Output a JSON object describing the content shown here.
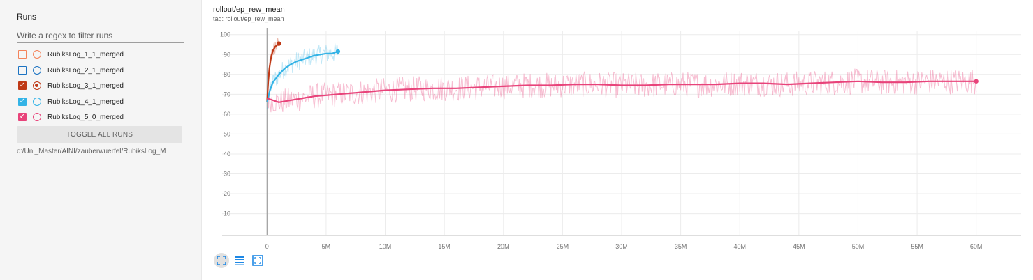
{
  "sidebar": {
    "title": "Runs",
    "filter_placeholder": "Write a regex to filter runs",
    "runs": [
      {
        "label": "RubiksLog_1_1_merged",
        "color": "#f4835a",
        "checked": false,
        "radio_selected": false
      },
      {
        "label": "RubiksLog_2_1_merged",
        "color": "#1c73c2",
        "checked": false,
        "radio_selected": false
      },
      {
        "label": "RubiksLog_3_1_merged",
        "color": "#bf3916",
        "checked": true,
        "radio_selected": true
      },
      {
        "label": "RubiksLog_4_1_merged",
        "color": "#33b3e6",
        "checked": true,
        "radio_selected": false
      },
      {
        "label": "RubiksLog_5_0_merged",
        "color": "#e8437a",
        "checked": true,
        "radio_selected": false
      }
    ],
    "toggle_all_label": "TOGGLE ALL RUNS",
    "log_path": "c:/Uni_Master/AINI/zauberwuerfel/RubiksLog_M"
  },
  "chart": {
    "title": "rollout/ep_rew_mean",
    "tag": "tag: rollout/ep_rew_mean",
    "toolbar": [
      "fit-to-data-icon",
      "toggle-legend-icon",
      "fit-domain-icon"
    ]
  },
  "chart_data": {
    "type": "line",
    "title": "rollout/ep_rew_mean",
    "xlabel": "",
    "ylabel": "",
    "x_ticks": [
      "0",
      "5M",
      "10M",
      "15M",
      "20M",
      "25M",
      "30M",
      "35M",
      "40M",
      "45M",
      "50M",
      "55M",
      "60M"
    ],
    "y_ticks": [
      "10",
      "20",
      "30",
      "40",
      "50",
      "60",
      "70",
      "80",
      "90",
      "100"
    ],
    "xlim": [
      -3800000,
      63800000
    ],
    "ylim": [
      -1,
      102
    ],
    "grid": true,
    "legend": "none",
    "series": [
      {
        "name": "RubiksLog_3_1_merged",
        "color": "#bf3916",
        "x": [
          0,
          100000,
          200000,
          300000,
          400000,
          500000,
          600000,
          700000,
          800000,
          900000,
          1000000
        ],
        "y": [
          66,
          76,
          83,
          87,
          90,
          92,
          93,
          94,
          94.5,
          95,
          95.5
        ]
      },
      {
        "name": "RubiksLog_4_1_merged",
        "color": "#33b3e6",
        "x": [
          0,
          250000,
          500000,
          1000000,
          1500000,
          2000000,
          2500000,
          3000000,
          3500000,
          4000000,
          4500000,
          5000000,
          5500000,
          6000000
        ],
        "y": [
          66,
          72,
          76,
          80,
          83,
          85,
          86.5,
          87.5,
          88.5,
          89.5,
          90,
          90.5,
          90.5,
          91.5
        ]
      },
      {
        "name": "RubiksLog_5_0_merged",
        "color": "#e8437a",
        "x": [
          0,
          1000000,
          2000000,
          3000000,
          4000000,
          5000000,
          6000000,
          7000000,
          8000000,
          10000000,
          12000000,
          14000000,
          16000000,
          18000000,
          20000000,
          22000000,
          24000000,
          26000000,
          28000000,
          30000000,
          32000000,
          34000000,
          36000000,
          38000000,
          40000000,
          42000000,
          44000000,
          46000000,
          48000000,
          50000000,
          52000000,
          54000000,
          56000000,
          58000000,
          60000000
        ],
        "y": [
          68,
          66,
          67,
          68,
          69,
          69.5,
          70,
          70.5,
          71,
          72,
          72.5,
          73,
          73,
          73.5,
          74,
          74.5,
          74.5,
          75,
          75,
          74.5,
          74.5,
          75,
          75,
          75,
          75.5,
          75.5,
          75,
          75.5,
          76,
          76.5,
          76,
          76,
          76.5,
          76.5,
          76.5
        ]
      }
    ]
  }
}
